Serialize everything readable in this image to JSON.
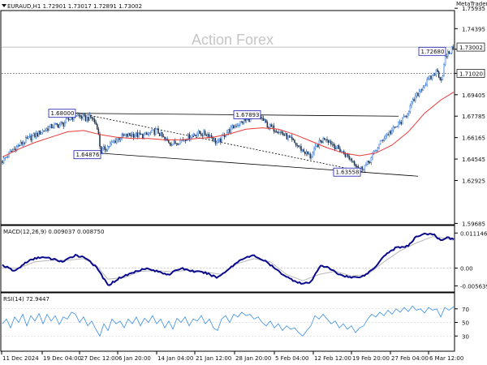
{
  "chart_data": {
    "type": "candlestick",
    "symbol_header": "EURAUD,H1  1.72901 1.73017 1.72891 1.73002",
    "watermark": "Action Forex",
    "top_right_mark": "MetaTrader",
    "colors": {
      "candle_up": "#1f6bd6",
      "candle_down": "#22354a",
      "ma": "#e83a3a",
      "channel": "#000000",
      "label_border": "#1b1bb0",
      "macd_line": "#0a0a8c",
      "macd_signal": "#b8b8b8",
      "rsi_line": "#3b8fe6"
    },
    "price_axis": {
      "ylim": [
        1.5965,
        1.757
      ],
      "ticks": [
        "1.75935",
        "1.74395",
        "1.72845",
        "1.71020",
        "1.69405",
        "1.67785",
        "1.66165",
        "1.64545",
        "1.62925",
        "1.59685"
      ],
      "current_price": "1.73002",
      "dotted_level": "1.71020"
    },
    "annotations": [
      {
        "label": "1.68000",
        "x": 90,
        "y": 1.68
      },
      {
        "label": "1.64876",
        "x": 121,
        "y": 1.64876
      },
      {
        "label": "1.67893",
        "x": 318,
        "y": 1.67893
      },
      {
        "label": "1.63558",
        "x": 441,
        "y": 1.63558
      },
      {
        "label": "1.72680",
        "x": 546,
        "y": 1.7268
      }
    ],
    "trendlines": [
      {
        "x1": 90,
        "y1": 1.68,
        "x2": 488,
        "y2": 1.6778
      },
      {
        "x1": 118,
        "y1": 1.65,
        "x2": 512,
        "y2": 1.6325
      },
      {
        "x1": 93,
        "y1": 1.6803,
        "x2": 448,
        "y2": 1.6355
      }
    ],
    "price_path": [
      [
        0,
        1.644
      ],
      [
        12,
        1.652
      ],
      [
        30,
        1.66
      ],
      [
        45,
        1.665
      ],
      [
        60,
        1.67
      ],
      [
        75,
        1.672
      ],
      [
        90,
        1.679
      ],
      [
        102,
        1.676
      ],
      [
        110,
        1.677
      ],
      [
        117,
        1.67
      ],
      [
        121,
        1.651
      ],
      [
        132,
        1.656
      ],
      [
        145,
        1.662
      ],
      [
        160,
        1.664
      ],
      [
        175,
        1.663
      ],
      [
        190,
        1.667
      ],
      [
        200,
        1.66
      ],
      [
        210,
        1.657
      ],
      [
        225,
        1.661
      ],
      [
        240,
        1.665
      ],
      [
        255,
        1.664
      ],
      [
        265,
        1.657
      ],
      [
        275,
        1.665
      ],
      [
        290,
        1.672
      ],
      [
        305,
        1.676
      ],
      [
        318,
        1.677
      ],
      [
        328,
        1.67
      ],
      [
        340,
        1.667
      ],
      [
        355,
        1.66
      ],
      [
        370,
        1.652
      ],
      [
        380,
        1.647
      ],
      [
        388,
        1.656
      ],
      [
        398,
        1.662
      ],
      [
        408,
        1.656
      ],
      [
        420,
        1.65
      ],
      [
        432,
        1.644
      ],
      [
        441,
        1.638
      ],
      [
        450,
        1.642
      ],
      [
        460,
        1.652
      ],
      [
        470,
        1.662
      ],
      [
        482,
        1.668
      ],
      [
        495,
        1.676
      ],
      [
        505,
        1.688
      ],
      [
        515,
        1.698
      ],
      [
        525,
        1.705
      ],
      [
        535,
        1.712
      ],
      [
        541,
        1.705
      ],
      [
        546,
        1.723
      ],
      [
        552,
        1.727
      ],
      [
        556,
        1.73
      ]
    ],
    "ma_path": [
      [
        0,
        1.647
      ],
      [
        20,
        1.653
      ],
      [
        40,
        1.658
      ],
      [
        60,
        1.662
      ],
      [
        80,
        1.666
      ],
      [
        100,
        1.667
      ],
      [
        120,
        1.664
      ],
      [
        140,
        1.662
      ],
      [
        160,
        1.661
      ],
      [
        180,
        1.661
      ],
      [
        200,
        1.66
      ],
      [
        220,
        1.66
      ],
      [
        240,
        1.661
      ],
      [
        260,
        1.662
      ],
      [
        280,
        1.6645
      ],
      [
        300,
        1.668
      ],
      [
        320,
        1.669
      ],
      [
        340,
        1.668
      ],
      [
        360,
        1.664
      ],
      [
        380,
        1.659
      ],
      [
        400,
        1.654
      ],
      [
        420,
        1.65
      ],
      [
        440,
        1.648
      ],
      [
        460,
        1.65
      ],
      [
        480,
        1.656
      ],
      [
        500,
        1.666
      ],
      [
        520,
        1.68
      ],
      [
        540,
        1.69
      ],
      [
        556,
        1.696
      ]
    ],
    "macd": {
      "label": "MACD(12,26,9)  0.009037  0.008750",
      "ylim": [
        -0.0068,
        0.0125
      ],
      "ticks": [
        "0.011146",
        "0.00",
        "-0.005639"
      ],
      "line": [
        [
          0,
          0.001
        ],
        [
          15,
          -0.001
        ],
        [
          30,
          0.002
        ],
        [
          45,
          0.0035
        ],
        [
          60,
          0.003
        ],
        [
          75,
          0.002
        ],
        [
          90,
          0.0042
        ],
        [
          105,
          0.003
        ],
        [
          118,
          -0.0005
        ],
        [
          130,
          -0.0055
        ],
        [
          145,
          -0.003
        ],
        [
          160,
          -0.0015
        ],
        [
          175,
          0.0
        ],
        [
          190,
          -0.001
        ],
        [
          205,
          -0.002
        ],
        [
          220,
          0.0
        ],
        [
          235,
          -0.001
        ],
        [
          250,
          -0.0015
        ],
        [
          265,
          -0.003
        ],
        [
          280,
          0.0
        ],
        [
          295,
          0.003
        ],
        [
          310,
          0.004
        ],
        [
          325,
          0.002
        ],
        [
          340,
          -0.001
        ],
        [
          355,
          -0.0035
        ],
        [
          370,
          -0.005
        ],
        [
          380,
          -0.0045
        ],
        [
          392,
          0.001
        ],
        [
          402,
          0.0
        ],
        [
          415,
          -0.002
        ],
        [
          430,
          -0.003
        ],
        [
          445,
          -0.0025
        ],
        [
          458,
          0.0
        ],
        [
          470,
          0.004
        ],
        [
          485,
          0.0065
        ],
        [
          500,
          0.007
        ],
        [
          510,
          0.01
        ],
        [
          520,
          0.011
        ],
        [
          532,
          0.0105
        ],
        [
          541,
          0.0085
        ],
        [
          548,
          0.01
        ],
        [
          556,
          0.009
        ]
      ],
      "signal": [
        [
          0,
          0.0
        ],
        [
          20,
          0.0
        ],
        [
          40,
          0.002
        ],
        [
          60,
          0.0025
        ],
        [
          80,
          0.0025
        ],
        [
          100,
          0.003
        ],
        [
          115,
          0.001
        ],
        [
          130,
          -0.0035
        ],
        [
          150,
          -0.003
        ],
        [
          170,
          -0.001
        ],
        [
          190,
          -0.0008
        ],
        [
          210,
          -0.0012
        ],
        [
          230,
          -0.0006
        ],
        [
          250,
          -0.0012
        ],
        [
          270,
          -0.002
        ],
        [
          290,
          0.0015
        ],
        [
          310,
          0.003
        ],
        [
          330,
          0.002
        ],
        [
          350,
          -0.002
        ],
        [
          370,
          -0.004
        ],
        [
          390,
          -0.002
        ],
        [
          410,
          -0.001
        ],
        [
          430,
          -0.0025
        ],
        [
          450,
          -0.002
        ],
        [
          470,
          0.002
        ],
        [
          490,
          0.0055
        ],
        [
          510,
          0.008
        ],
        [
          530,
          0.01
        ],
        [
          545,
          0.0095
        ],
        [
          556,
          0.0088
        ]
      ]
    },
    "rsi": {
      "label": "RSI(14) 72.9447",
      "ylim": [
        10,
        90
      ],
      "ticks": [
        "70",
        "50",
        "30"
      ],
      "line": [
        [
          0,
          48
        ],
        [
          5,
          55
        ],
        [
          10,
          42
        ],
        [
          15,
          58
        ],
        [
          20,
          50
        ],
        [
          25,
          62
        ],
        [
          30,
          45
        ],
        [
          35,
          60
        ],
        [
          40,
          52
        ],
        [
          45,
          63
        ],
        [
          50,
          48
        ],
        [
          55,
          62
        ],
        [
          60,
          52
        ],
        [
          65,
          60
        ],
        [
          70,
          47
        ],
        [
          75,
          58
        ],
        [
          80,
          55
        ],
        [
          85,
          65
        ],
        [
          90,
          62
        ],
        [
          95,
          50
        ],
        [
          100,
          58
        ],
        [
          105,
          45
        ],
        [
          110,
          52
        ],
        [
          115,
          40
        ],
        [
          120,
          30
        ],
        [
          125,
          48
        ],
        [
          130,
          38
        ],
        [
          135,
          55
        ],
        [
          140,
          48
        ],
        [
          145,
          52
        ],
        [
          150,
          42
        ],
        [
          155,
          55
        ],
        [
          160,
          48
        ],
        [
          165,
          58
        ],
        [
          170,
          45
        ],
        [
          175,
          56
        ],
        [
          180,
          50
        ],
        [
          185,
          60
        ],
        [
          190,
          48
        ],
        [
          195,
          55
        ],
        [
          200,
          42
        ],
        [
          205,
          52
        ],
        [
          210,
          40
        ],
        [
          215,
          56
        ],
        [
          220,
          50
        ],
        [
          225,
          58
        ],
        [
          230,
          45
        ],
        [
          235,
          55
        ],
        [
          240,
          52
        ],
        [
          245,
          60
        ],
        [
          250,
          48
        ],
        [
          255,
          55
        ],
        [
          260,
          42
        ],
        [
          265,
          38
        ],
        [
          270,
          55
        ],
        [
          275,
          60
        ],
        [
          280,
          50
        ],
        [
          285,
          62
        ],
        [
          290,
          58
        ],
        [
          295,
          65
        ],
        [
          300,
          60
        ],
        [
          305,
          62
        ],
        [
          310,
          55
        ],
        [
          315,
          58
        ],
        [
          320,
          50
        ],
        [
          325,
          45
        ],
        [
          330,
          52
        ],
        [
          335,
          42
        ],
        [
          340,
          48
        ],
        [
          345,
          38
        ],
        [
          350,
          45
        ],
        [
          355,
          40
        ],
        [
          360,
          42
        ],
        [
          365,
          35
        ],
        [
          370,
          30
        ],
        [
          375,
          38
        ],
        [
          380,
          45
        ],
        [
          385,
          60
        ],
        [
          390,
          55
        ],
        [
          395,
          62
        ],
        [
          400,
          55
        ],
        [
          405,
          48
        ],
        [
          410,
          52
        ],
        [
          415,
          42
        ],
        [
          420,
          48
        ],
        [
          425,
          40
        ],
        [
          430,
          45
        ],
        [
          435,
          35
        ],
        [
          440,
          42
        ],
        [
          445,
          45
        ],
        [
          450,
          55
        ],
        [
          455,
          62
        ],
        [
          460,
          58
        ],
        [
          465,
          65
        ],
        [
          470,
          60
        ],
        [
          475,
          68
        ],
        [
          480,
          62
        ],
        [
          485,
          70
        ],
        [
          490,
          65
        ],
        [
          495,
          72
        ],
        [
          500,
          66
        ],
        [
          505,
          74
        ],
        [
          510,
          68
        ],
        [
          515,
          70
        ],
        [
          520,
          64
        ],
        [
          525,
          72
        ],
        [
          530,
          68
        ],
        [
          535,
          70
        ],
        [
          540,
          58
        ],
        [
          545,
          72
        ],
        [
          550,
          68
        ],
        [
          556,
          73
        ]
      ]
    },
    "x_ticks": [
      {
        "x": 2,
        "label": "11 Dec 2024"
      },
      {
        "x": 52,
        "label": "19 Dec 04:00"
      },
      {
        "x": 98,
        "label": "27 Dec 12:00"
      },
      {
        "x": 145,
        "label": "6 Jan 20:00"
      },
      {
        "x": 193,
        "label": "14 Jan 04:00"
      },
      {
        "x": 240,
        "label": "21 Jan 12:00"
      },
      {
        "x": 289,
        "label": "28 Jan 20:00"
      },
      {
        "x": 338,
        "label": "5 Feb 04:00"
      },
      {
        "x": 386,
        "label": "12 Feb 12:00"
      },
      {
        "x": 433,
        "label": "19 Feb 20:00"
      },
      {
        "x": 481,
        "label": "27 Feb 04:00"
      },
      {
        "x": 528,
        "label": "6 Mar 12:00"
      }
    ]
  }
}
